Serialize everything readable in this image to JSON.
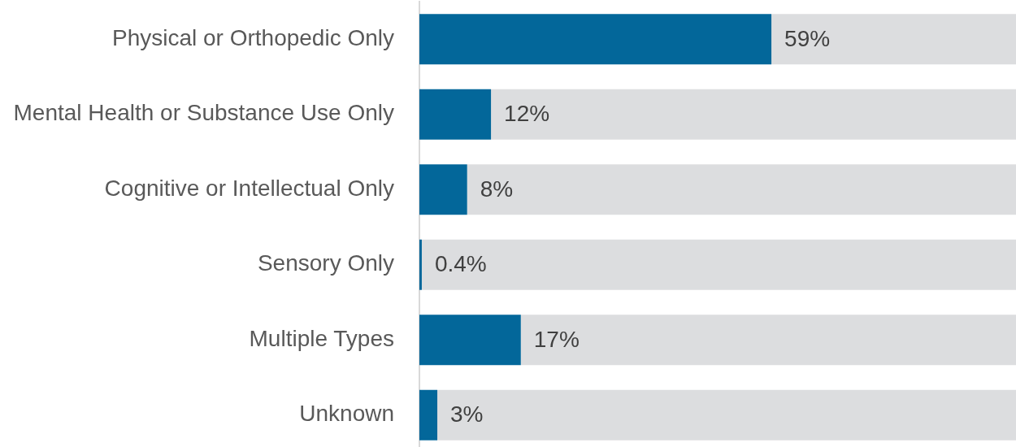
{
  "chart_data": {
    "type": "bar",
    "orientation": "horizontal",
    "stacked": true,
    "categories": [
      "Physical or Orthopedic Only",
      "Mental Health or Substance Use Only",
      "Cognitive or Intellectual Only",
      "Sensory Only",
      "Multiple Types",
      "Unknown"
    ],
    "series": [
      {
        "color": "#03679a",
        "values": [
          59,
          12,
          8,
          0.4,
          17,
          3
        ],
        "value_labels": [
          "59%",
          "12%",
          "8%",
          "0.4%",
          "17%",
          "3%"
        ]
      },
      {
        "color": "#dcdddf",
        "values": [
          41,
          88,
          92,
          99.6,
          83,
          97
        ]
      }
    ],
    "xlim": [
      0,
      100
    ],
    "tick_labels": "y",
    "grid": false,
    "legend": false
  }
}
